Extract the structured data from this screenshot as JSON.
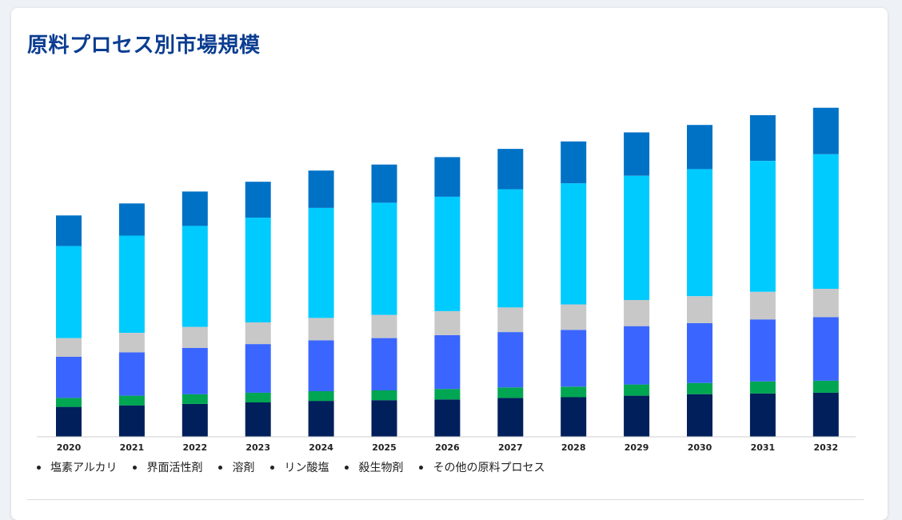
{
  "page": {
    "title": "原料プロセス別市場規模"
  },
  "chart_data": {
    "type": "bar",
    "stacked": true,
    "categories": [
      "2020",
      "2021",
      "2022",
      "2023",
      "2024",
      "2025",
      "2026",
      "2027",
      "2028",
      "2029",
      "2030",
      "2031",
      "2032"
    ],
    "series": [
      {
        "name": "塩素アルカリ",
        "color": "#001f5b",
        "values": [
          40,
          42,
          44,
          46,
          48,
          49,
          50,
          52,
          53,
          55,
          57,
          58,
          59
        ]
      },
      {
        "name": "界面活性剤",
        "color": "#00a651",
        "values": [
          12,
          13,
          13,
          13,
          13,
          13,
          14,
          14,
          14,
          15,
          15,
          16,
          16
        ]
      },
      {
        "name": "溶剤",
        "color": "#3a66ff",
        "values": [
          55,
          58,
          62,
          65,
          68,
          70,
          72,
          74,
          76,
          78,
          80,
          83,
          85
        ]
      },
      {
        "name": "リン酸塩",
        "color": "#c8c8c8",
        "values": [
          25,
          26,
          28,
          29,
          30,
          31,
          32,
          33,
          34,
          35,
          36,
          37,
          38
        ]
      },
      {
        "name": "殺生物剤",
        "color": "#00cbff",
        "values": [
          123,
          130,
          135,
          140,
          147,
          150,
          153,
          158,
          162,
          166,
          170,
          175,
          180
        ]
      },
      {
        "name": "その他の原料プロセス",
        "color": "#0072c6",
        "values": [
          41,
          43,
          46,
          48,
          50,
          51,
          53,
          54,
          56,
          58,
          59,
          61,
          62
        ]
      }
    ],
    "ylim": [
      0,
      460
    ],
    "grid": false,
    "legend_position": "bottom"
  }
}
